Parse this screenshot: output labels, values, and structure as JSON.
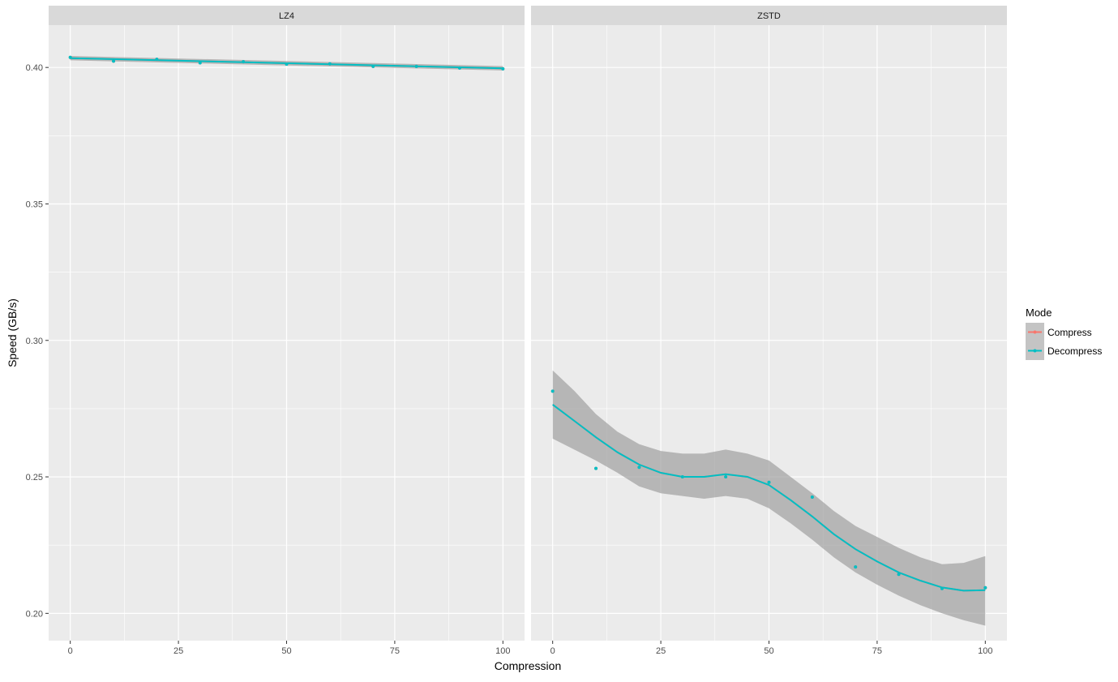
{
  "chart_data": {
    "type": "line",
    "facets": [
      {
        "name": "LZ4",
        "series": [
          {
            "name": "Compress",
            "points": [
              [
                0,
                0.4037
              ],
              [
                10,
                0.4023
              ],
              [
                20,
                0.403
              ],
              [
                30,
                0.4017
              ],
              [
                40,
                0.4021
              ],
              [
                50,
                0.4012
              ],
              [
                60,
                0.4013
              ],
              [
                70,
                0.4004
              ],
              [
                80,
                0.4004
              ],
              [
                90,
                0.3998
              ],
              [
                100,
                0.3995
              ]
            ],
            "fit": [
              [
                0,
                0.4034
              ],
              [
                100,
                0.3997
              ]
            ],
            "band_halfwidth": [
              0.0008,
              0.0008
            ]
          },
          {
            "name": "Decompress",
            "points": [
              [
                0,
                0.4037
              ],
              [
                10,
                0.4023
              ],
              [
                20,
                0.403
              ],
              [
                30,
                0.4017
              ],
              [
                40,
                0.4021
              ],
              [
                50,
                0.4012
              ],
              [
                60,
                0.4013
              ],
              [
                70,
                0.4004
              ],
              [
                80,
                0.4004
              ],
              [
                90,
                0.3998
              ],
              [
                100,
                0.3995
              ]
            ],
            "fit": [
              [
                0,
                0.4034
              ],
              [
                100,
                0.3997
              ]
            ],
            "band_halfwidth": [
              0.0008,
              0.0008
            ]
          }
        ]
      },
      {
        "name": "ZSTD",
        "series": [
          {
            "name": "Compress",
            "points": [
              [
                0,
                0.2814
              ],
              [
                10,
                0.2531
              ],
              [
                20,
                0.2535
              ],
              [
                30,
                0.25
              ],
              [
                40,
                0.25
              ],
              [
                50,
                0.248
              ],
              [
                60,
                0.2426
              ],
              [
                70,
                0.217
              ],
              [
                80,
                0.2143
              ],
              [
                90,
                0.2091
              ],
              [
                100,
                0.2094
              ]
            ],
            "fit": [
              [
                0,
                0.2765
              ],
              [
                5,
                0.2705
              ],
              [
                10,
                0.2645
              ],
              [
                15,
                0.259
              ],
              [
                20,
                0.2545
              ],
              [
                25,
                0.2515
              ],
              [
                30,
                0.25
              ],
              [
                35,
                0.25
              ],
              [
                40,
                0.251
              ],
              [
                45,
                0.25
              ],
              [
                50,
                0.247
              ],
              [
                55,
                0.2415
              ],
              [
                60,
                0.2355
              ],
              [
                65,
                0.229
              ],
              [
                70,
                0.2235
              ],
              [
                75,
                0.219
              ],
              [
                80,
                0.215
              ],
              [
                85,
                0.212
              ],
              [
                90,
                0.2095
              ],
              [
                95,
                0.2083
              ],
              [
                100,
                0.2085
              ]
            ],
            "band": [
              [
                0,
                0.264,
                0.289
              ],
              [
                5,
                0.26,
                0.2815
              ],
              [
                10,
                0.256,
                0.273
              ],
              [
                15,
                0.2515,
                0.2665
              ],
              [
                20,
                0.2465,
                0.262
              ],
              [
                25,
                0.244,
                0.2595
              ],
              [
                30,
                0.243,
                0.2585
              ],
              [
                35,
                0.242,
                0.2585
              ],
              [
                40,
                0.243,
                0.26
              ],
              [
                45,
                0.242,
                0.2585
              ],
              [
                50,
                0.2385,
                0.256
              ],
              [
                55,
                0.233,
                0.25
              ],
              [
                60,
                0.227,
                0.244
              ],
              [
                65,
                0.2205,
                0.2375
              ],
              [
                70,
                0.215,
                0.232
              ],
              [
                75,
                0.2105,
                0.228
              ],
              [
                80,
                0.2065,
                0.224
              ],
              [
                85,
                0.203,
                0.2205
              ],
              [
                90,
                0.2,
                0.218
              ],
              [
                95,
                0.1975,
                0.2185
              ],
              [
                100,
                0.1955,
                0.221
              ]
            ]
          },
          {
            "name": "Decompress",
            "points": [
              [
                0,
                0.2814
              ],
              [
                10,
                0.2531
              ],
              [
                20,
                0.2535
              ],
              [
                30,
                0.25
              ],
              [
                40,
                0.25
              ],
              [
                50,
                0.248
              ],
              [
                60,
                0.2426
              ],
              [
                70,
                0.217
              ],
              [
                80,
                0.2143
              ],
              [
                90,
                0.2091
              ],
              [
                100,
                0.2094
              ]
            ],
            "fit": [
              [
                0,
                0.2765
              ],
              [
                5,
                0.2705
              ],
              [
                10,
                0.2645
              ],
              [
                15,
                0.259
              ],
              [
                20,
                0.2545
              ],
              [
                25,
                0.2515
              ],
              [
                30,
                0.25
              ],
              [
                35,
                0.25
              ],
              [
                40,
                0.251
              ],
              [
                45,
                0.25
              ],
              [
                50,
                0.247
              ],
              [
                55,
                0.2415
              ],
              [
                60,
                0.2355
              ],
              [
                65,
                0.229
              ],
              [
                70,
                0.2235
              ],
              [
                75,
                0.219
              ],
              [
                80,
                0.215
              ],
              [
                85,
                0.212
              ],
              [
                90,
                0.2095
              ],
              [
                95,
                0.2083
              ],
              [
                100,
                0.2085
              ]
            ],
            "band": [
              [
                0,
                0.264,
                0.289
              ],
              [
                5,
                0.26,
                0.2815
              ],
              [
                10,
                0.256,
                0.273
              ],
              [
                15,
                0.2515,
                0.2665
              ],
              [
                20,
                0.2465,
                0.262
              ],
              [
                25,
                0.244,
                0.2595
              ],
              [
                30,
                0.243,
                0.2585
              ],
              [
                35,
                0.242,
                0.2585
              ],
              [
                40,
                0.243,
                0.26
              ],
              [
                45,
                0.242,
                0.2585
              ],
              [
                50,
                0.2385,
                0.256
              ],
              [
                55,
                0.233,
                0.25
              ],
              [
                60,
                0.227,
                0.244
              ],
              [
                65,
                0.2205,
                0.2375
              ],
              [
                70,
                0.215,
                0.232
              ],
              [
                75,
                0.2105,
                0.228
              ],
              [
                80,
                0.2065,
                0.224
              ],
              [
                85,
                0.203,
                0.2205
              ],
              [
                90,
                0.2,
                0.218
              ],
              [
                95,
                0.1975,
                0.2185
              ],
              [
                100,
                0.1955,
                0.221
              ]
            ]
          }
        ]
      }
    ],
    "x_ticks": [
      0,
      25,
      50,
      75,
      100
    ],
    "y_ticks": [
      0.2,
      0.25,
      0.3,
      0.35,
      0.4
    ],
    "y_tick_labels": [
      "0.20",
      "0.25",
      "0.30",
      "0.35",
      "0.40"
    ],
    "xlim": [
      -5,
      105
    ],
    "ylim": [
      0.19,
      0.4155
    ],
    "xlabel": "Compression",
    "ylabel": "Speed (GB/s)",
    "grid": true,
    "legend": {
      "title": "Mode",
      "position": "right",
      "entries": [
        "Compress",
        "Decompress"
      ]
    },
    "colors": {
      "Compress": "#F8766D",
      "Decompress": "#00BFC4",
      "panel_bg": "#EBEBEB",
      "strip_bg": "#D9D9D9",
      "band": "#999999",
      "grid": "#FFFFFF"
    }
  }
}
